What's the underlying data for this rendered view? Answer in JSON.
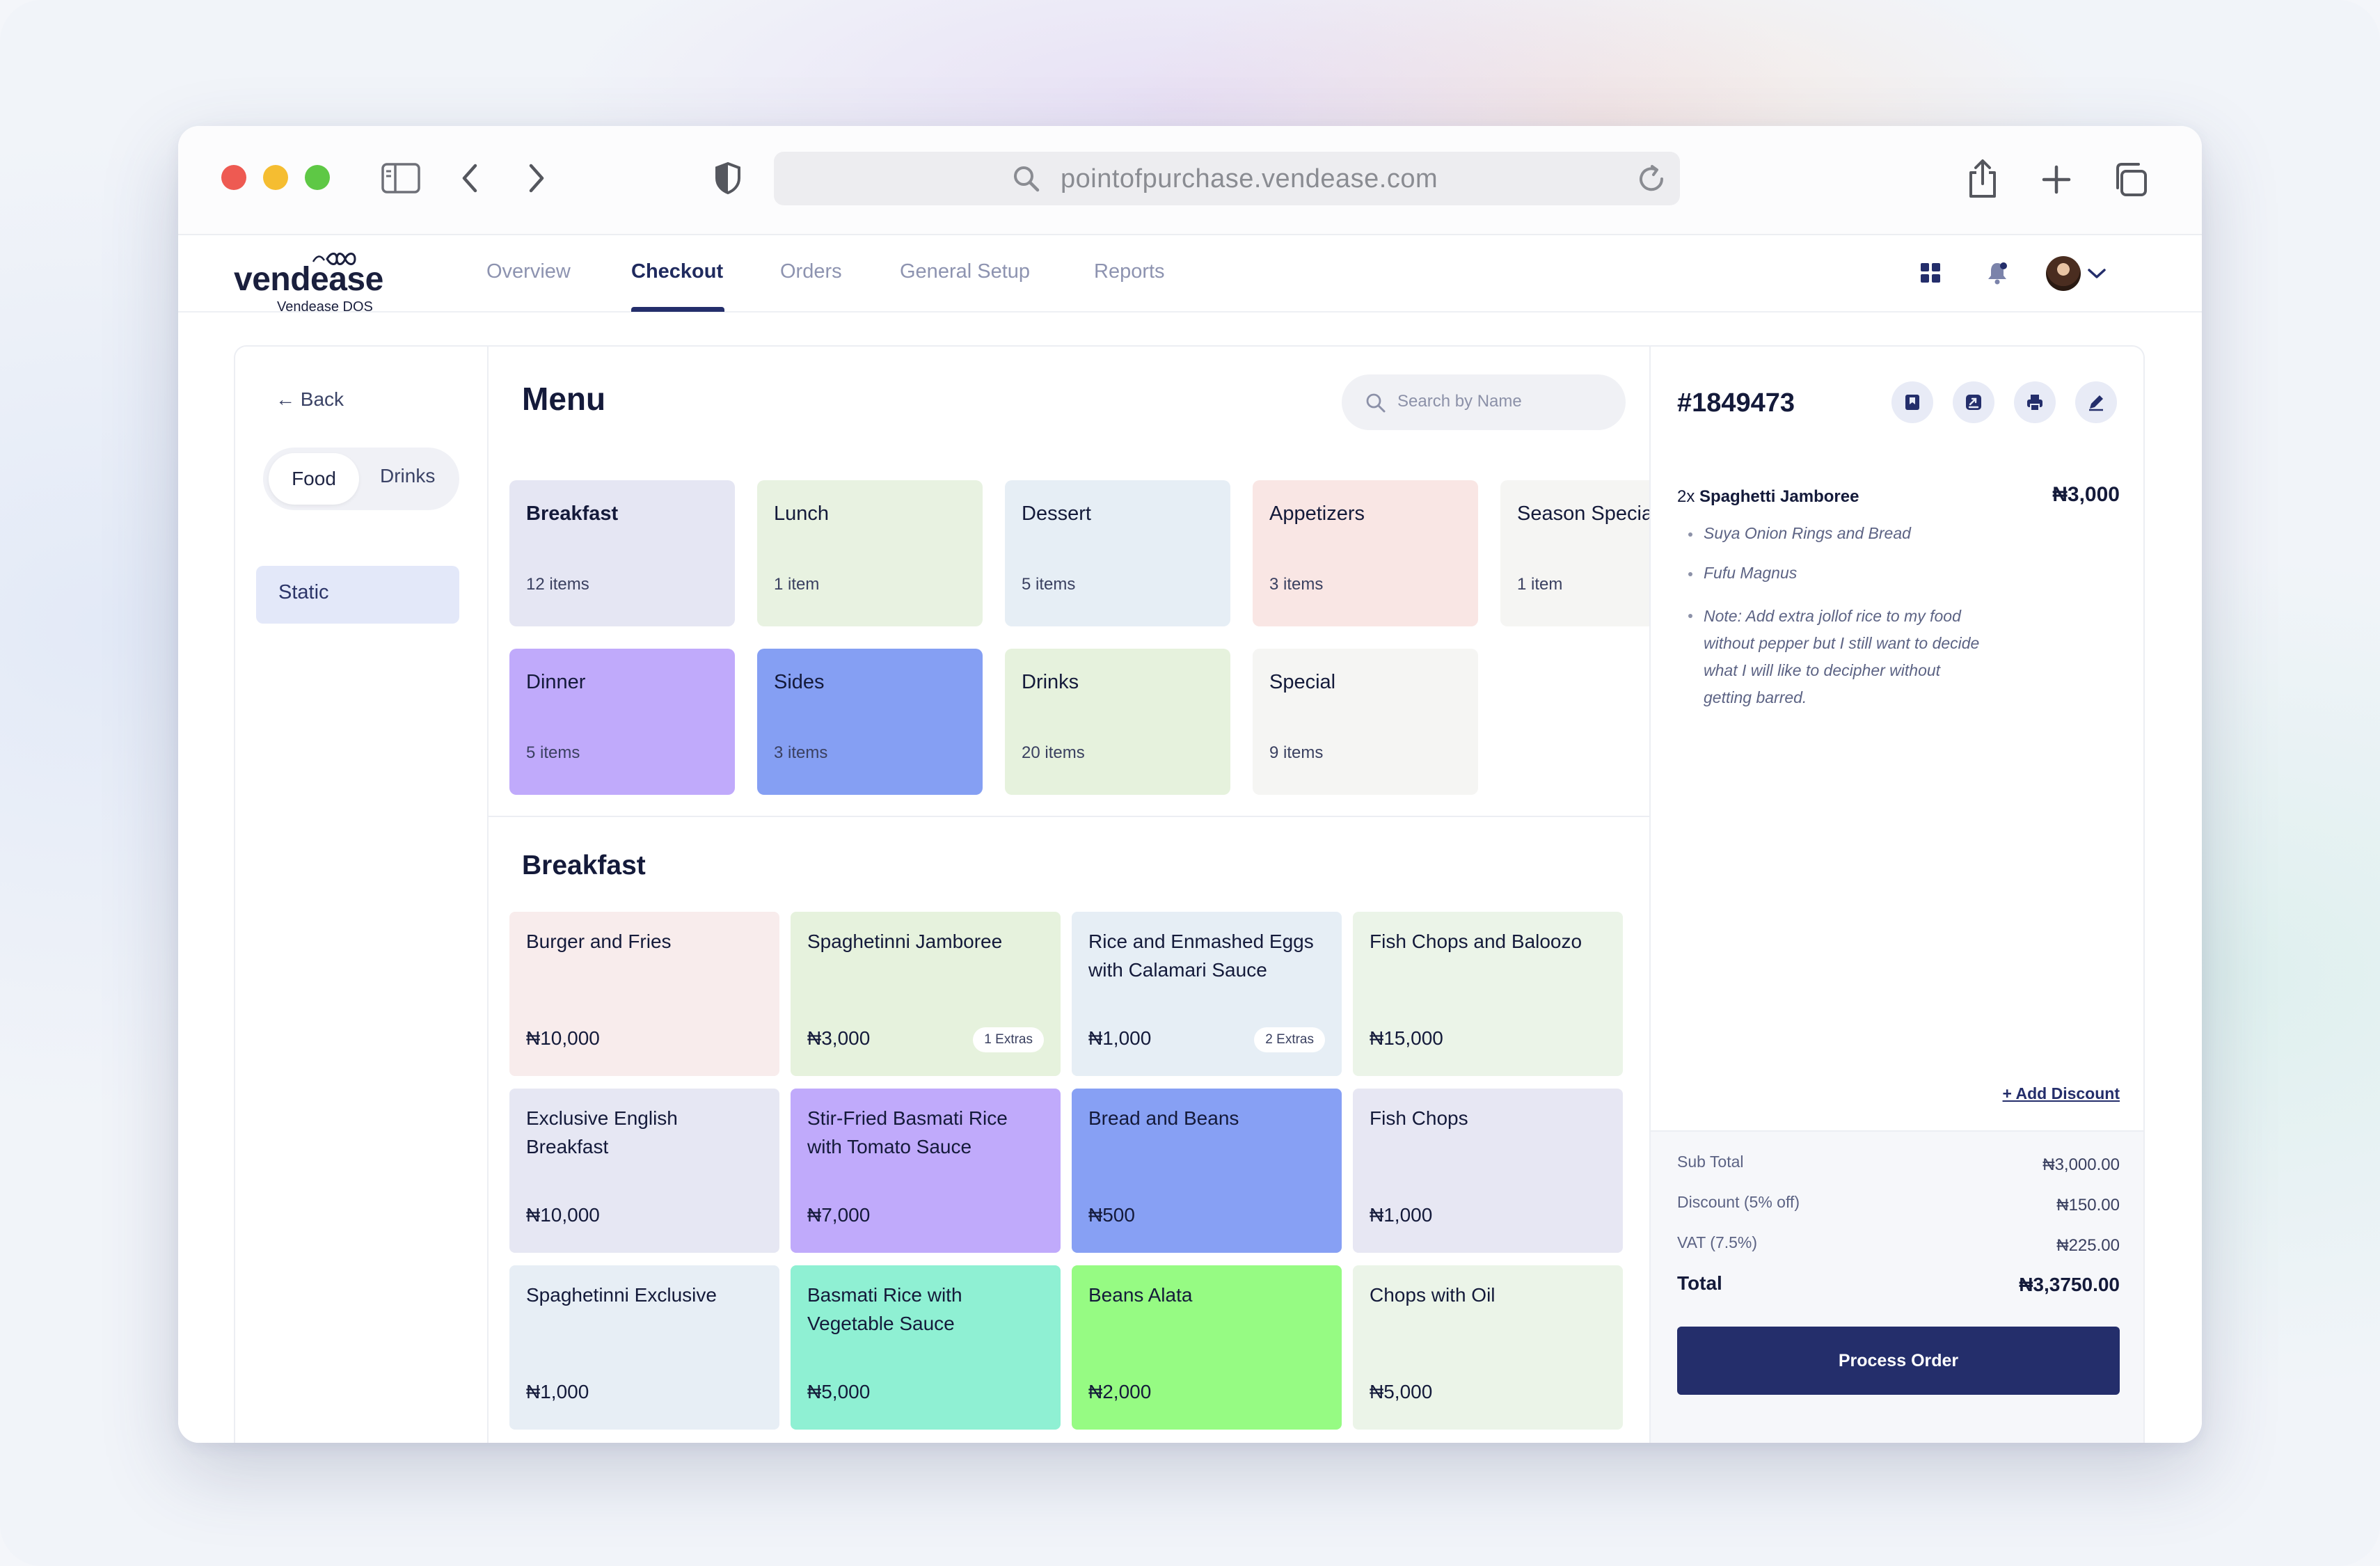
{
  "browser": {
    "url": "pointofpurchase.vendease.com",
    "traffic_colors": [
      "#ee5a52",
      "#f5bd31",
      "#5ec845"
    ]
  },
  "app": {
    "logo": "vendease",
    "logo_sub": "Vendease DOS",
    "nav": [
      {
        "label": "Overview",
        "active": false
      },
      {
        "label": "Checkout",
        "active": true
      },
      {
        "label": "Orders",
        "active": false
      },
      {
        "label": "General Setup",
        "active": false
      },
      {
        "label": "Reports",
        "active": false
      }
    ],
    "header_icons": [
      "grid-icon",
      "bell-icon",
      "avatar",
      "chevron-down-icon"
    ]
  },
  "sidebar": {
    "back": "Back",
    "toggle": {
      "selected": "Food",
      "other": "Drinks"
    },
    "items": [
      "Static"
    ]
  },
  "menu": {
    "title": "Menu",
    "search_placeholder": "Search by Name",
    "categories": [
      {
        "name": "Breakfast",
        "count": "12 items",
        "color": "#e5e6f3",
        "bold": true
      },
      {
        "name": "Lunch",
        "count": "1 item",
        "color": "#e8f2e1"
      },
      {
        "name": "Dessert",
        "count": "5 items",
        "color": "#e6eef5"
      },
      {
        "name": "Appetizers",
        "count": "3 items",
        "color": "#f9e6e4"
      },
      {
        "name": "Season Specials",
        "count": "1 item",
        "color": "#f5f5f3"
      },
      {
        "name": "Dinner",
        "count": "5 items",
        "color": "#c0aafb"
      },
      {
        "name": "Sides",
        "count": "3 items",
        "color": "#859ff3"
      },
      {
        "name": "Drinks",
        "count": "20 items",
        "color": "#e6f2dd"
      },
      {
        "name": "Special",
        "count": "9 items",
        "color": "#f5f5f3"
      }
    ],
    "section_title": "Breakfast",
    "items": [
      {
        "name": "Burger and Fries",
        "price": "₦10,000",
        "extras": "",
        "color": "#f8ecec"
      },
      {
        "name": "Spaghetinni Jamboree",
        "price": "₦3,000",
        "extras": "1 Extras",
        "color": "#e6f2dd"
      },
      {
        "name": "Rice and Enmashed Eggs with Calamari Sauce",
        "price": "₦1,000",
        "extras": "2 Extras",
        "color": "#e6eef5"
      },
      {
        "name": "Fish Chops and Baloozo",
        "price": "₦15,000",
        "extras": "",
        "color": "#ebf4e8"
      },
      {
        "name": "Exclusive English Breakfast",
        "price": "₦10,000",
        "extras": "",
        "color": "#e6e7f3"
      },
      {
        "name": "Stir-Fried Basmati Rice with Tomato Sauce",
        "price": "₦7,000",
        "extras": "",
        "color": "#c0aafb"
      },
      {
        "name": "Bread and Beans",
        "price": "₦500",
        "extras": "",
        "color": "#87a0f4"
      },
      {
        "name": "Fish Chops",
        "price": "₦1,000",
        "extras": "",
        "color": "#e7e7f3"
      },
      {
        "name": "Spaghetinni Exclusive",
        "price": "₦1,000",
        "extras": "",
        "color": "#e7eef5"
      },
      {
        "name": "Basmati Rice with Vegetable Sauce",
        "price": "₦5,000",
        "extras": "",
        "color": "#8ff0d3"
      },
      {
        "name": "Beans Alata",
        "price": "₦2,000",
        "extras": "",
        "color": "#96fb83"
      },
      {
        "name": "Chops with Oil",
        "price": "₦5,000",
        "extras": "",
        "color": "#ebf4e8"
      }
    ]
  },
  "order": {
    "id": "#1849473",
    "action_icons": [
      "bookmark-icon",
      "share-icon",
      "print-icon",
      "edit-icon"
    ],
    "line": {
      "qty": "2x",
      "name": "Spaghetti Jamboree",
      "price": "₦3,000"
    },
    "subs": [
      "Suya Onion Rings and Bread",
      "Fufu Magnus"
    ],
    "note": "Note: Add extra jollof rice to my food without pepper but I still want to decide what I will like to decipher without getting barred.",
    "add_discount": "+ Add Discount",
    "totals": [
      {
        "label": "Sub Total",
        "value": "₦3,000.00"
      },
      {
        "label": "Discount (5% off)",
        "value": "₦150.00"
      },
      {
        "label": "VAT (7.5%)",
        "value": "₦225.00"
      }
    ],
    "total": {
      "label": "Total",
      "value": "₦3,3750.00"
    },
    "process": "Process Order"
  }
}
